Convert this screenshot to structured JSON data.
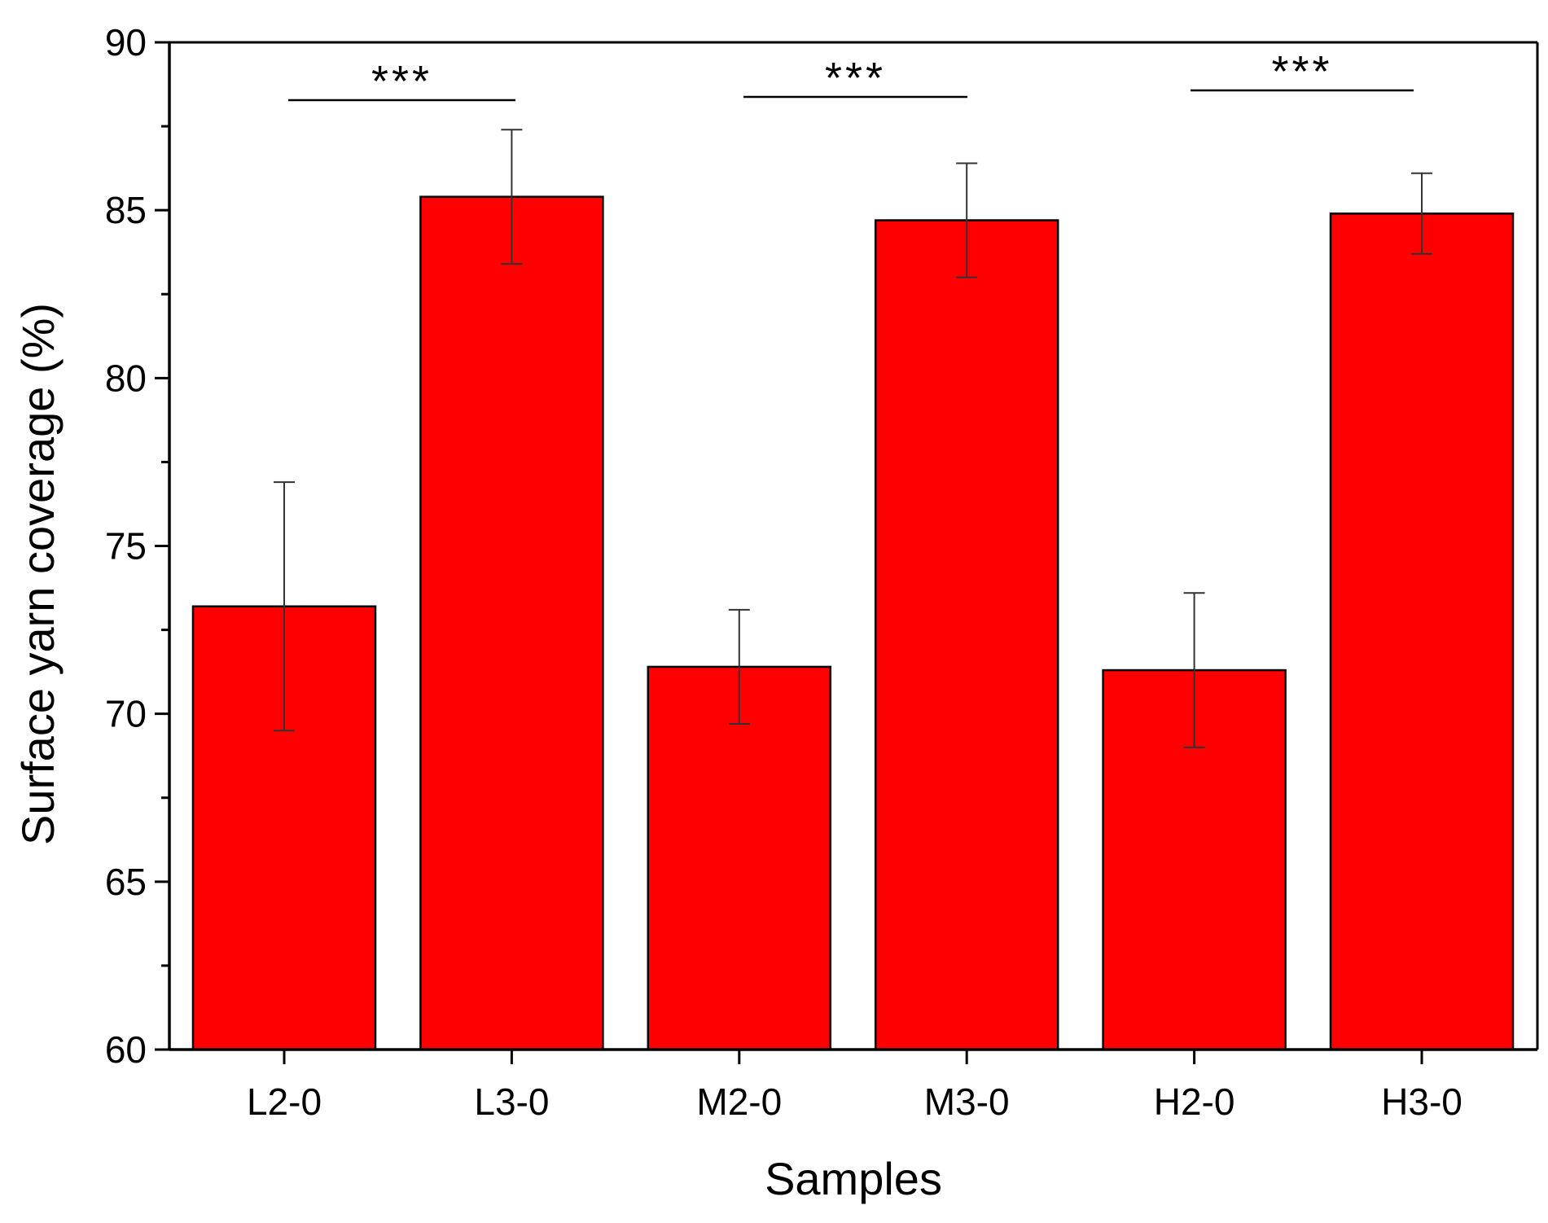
{
  "chart_data": {
    "type": "bar",
    "title": "",
    "xlabel": "Samples",
    "ylabel": "Surface yarn coverage (%)",
    "ylim": [
      60,
      90
    ],
    "y_ticks": [
      60,
      65,
      70,
      75,
      80,
      85,
      90
    ],
    "y_tick_labels": [
      "60",
      "65",
      "70",
      "75",
      "80",
      "85",
      "90"
    ],
    "categories": [
      "L2-0",
      "L3-0",
      "M2-0",
      "M3-0",
      "H2-0",
      "H3-0"
    ],
    "values": [
      73.2,
      85.4,
      71.4,
      84.7,
      71.3,
      84.9
    ],
    "errors": [
      3.7,
      2.0,
      1.7,
      1.7,
      2.3,
      1.2
    ],
    "bar_color": "#ff0000",
    "grid": false,
    "legend": "none",
    "significance": [
      {
        "from": "L2-0",
        "to": "L3-0",
        "label": "***",
        "y": 88.3
      },
      {
        "from": "M2-0",
        "to": "M3-0",
        "label": "***",
        "y": 88.3
      },
      {
        "from": "H2-0",
        "to": "H3-0",
        "label": "***",
        "y": 88.3
      }
    ]
  }
}
